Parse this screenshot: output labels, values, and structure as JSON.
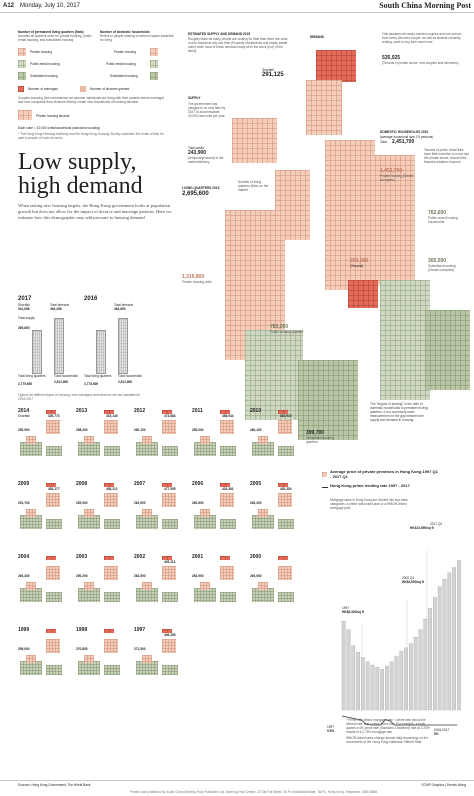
{
  "header": {
    "page": "A12",
    "date": "Monday, July 10, 2017",
    "masthead": "South China Morning Post"
  },
  "legend": {
    "col1_title": "Number of permanent living quarters (flats)",
    "col1_sub": "Includes all quarters used for private housing, public rental housing, and subsidised housing",
    "col2_title": "Number of domestic households",
    "col2_sub": "Refers to people sharing a common space essential for living",
    "private_housing": "Private housing",
    "public_rental": "Public rental housing",
    "subsidised": "Subsidised housing",
    "private_housing2": "Private housing",
    "public_rental2": "Public rental housing",
    "subsidised2": "Subsidised housing",
    "marriages": "Number of marriages",
    "divorces": "Number of divorces granted",
    "note_couples": "Couples marrying (the convenience we assume individuals are living with their parents before marriage) and new occupants from divorces directly create new households of housing demand",
    "private_tenants": "Private housing tenants",
    "cube_note": "Each cube = 10,000 units/households (standard rounding)",
    "source_note": "* The Hong Kong Housing Authority and the Hong Kong Housing Society subsidise the rental of flats for sale to people of lower incomes"
  },
  "headline": {
    "line1": "Low supply,",
    "line2": "high demand",
    "intro": "When setting new housing targets, the Hong Kong government looks at population growth but does not allow for the impact of divorce and marriage patterns. Here we estimate how this demographic may add pressure to housing demand"
  },
  "supply_demand": {
    "title": "ESTIMATED SUPPLY AND DEMAND 2015",
    "text": "Roughly twice as many people are looking for flats than there are units on the market at any one time (Property investments and empty estate units) while most of these demand-ready sit in the stock (not) of the family",
    "shortfall_label": "Shortfall",
    "shortfall": "291,125",
    "supply_title": "SUPPLY",
    "supply_text": "The government has pledged to no new flats by 2027 to accommodate 20,000 new units per year",
    "total_public": "Total public",
    "total_public_value": "243,900",
    "public_note": "(temporary/vacant) in the market/delivery",
    "living_title": "LIVING QUARTERS 2015",
    "living_value": "2,695,600",
    "living_note": "Number of living quarters (flats) on the market",
    "private_units": "1,316,800",
    "private_units_label": "Private housing units",
    "public_units": "783,200",
    "public_units_label": "Public housing quarters",
    "subsidised_units": "399,700",
    "subsidised_units_label": "Subsidised housing quarters",
    "demand_title": "DEMAND",
    "demand_text": "This assumes all newly married couples and one person from every divorced couple, as well as tenants currently renting, want to buy their own home",
    "demand_value": "535,025",
    "demand_note": "(Tenants in private sector, new couples and divorcees)",
    "households_title": "DOMESTIC HOUSEHOLDS 2015",
    "households_sub": "(average household size 2.9 persons)",
    "households_total_label": "Total",
    "households_total": "2,451,700",
    "private_households": "1,451,700",
    "private_households_label": "Private housing (Owner-occupiers)",
    "tenants_note": "Tenants of public rental flats have little incentive to move into the private sector, should their financial situation improve",
    "public_households": "762,600",
    "public_households_label": "Public rental housing households",
    "subsidised_households": "393,000",
    "subsidised_households_label": "(Tenants)",
    "subsidised_owner": "365,500",
    "subsidised_owner_label": "Subsidised housing (Owner-occupiers)",
    "shortage_note": "The \"degree of sharing\" is the ratio of domestic households to permanent living quarters. It is a commonly used measurement for the gap between the supply and demand in housing"
  },
  "years": [
    {
      "year": "2017",
      "shortfall_label": "Shortfall",
      "shortfall": "331,658",
      "demand_label": "Total demand",
      "demand": "494,298",
      "supply_label": "Total supply",
      "supply": "265,890",
      "private_label": "Private housing",
      "households_label": "Total households",
      "households": "2,512,800",
      "quarters_label": "Total living quarters",
      "quarters": "2,775,600"
    },
    {
      "year": "2016",
      "shortfall_label": "Shortfall",
      "shortfall": "",
      "demand_label": "Total demand",
      "demand": "464,800",
      "supply_label": "Total supply",
      "supply": "",
      "private_label": "",
      "households_label": "Total households",
      "households": "2,512,800",
      "quarters_label": "Total living quarters",
      "quarters": "2,775,600"
    }
  ],
  "figure_note": "Figures for different types of housing, new marriages and divorces are not available for 2016-2017",
  "grid_years": [
    {
      "year": "2014",
      "a": "Shortfall",
      "b": "326,773",
      "c": "250,900"
    },
    {
      "year": "2013",
      "a": "",
      "b": "315,145",
      "c": "258,400"
    },
    {
      "year": "2012",
      "a": "",
      "b": "473,884",
      "c": "260,100"
    },
    {
      "year": "2011",
      "a": "",
      "b": "458,944",
      "c": "250,000"
    },
    {
      "year": "2010",
      "a": "",
      "b": "432,915",
      "c": "260,100"
    },
    {
      "year": "2009",
      "a": "",
      "b": "453,177",
      "c": "251,700"
    },
    {
      "year": "2008",
      "a": "",
      "b": "438,212",
      "c": "252,900"
    },
    {
      "year": "2007",
      "a": "",
      "b": "477,555",
      "c": "262,900"
    },
    {
      "year": "2006",
      "a": "",
      "b": "433,361",
      "c": "260,600"
    },
    {
      "year": "2005",
      "a": "",
      "b": "420,253",
      "c": "262,200"
    },
    {
      "year": "2004",
      "a": "",
      "b": "",
      "c": "264,300"
    },
    {
      "year": "2003",
      "a": "",
      "b": "",
      "c": "250,200"
    },
    {
      "year": "2002",
      "a": "",
      "b": "405,113",
      "c": "262,500"
    },
    {
      "year": "2001",
      "a": "",
      "b": "",
      "c": "263,900"
    },
    {
      "year": "2000",
      "a": "",
      "b": "",
      "c": "264,000"
    },
    {
      "year": "1999",
      "a": "",
      "b": "",
      "c": "259,000"
    },
    {
      "year": "1998",
      "a": "",
      "b": "",
      "c": "270,800"
    },
    {
      "year": "1997",
      "a": "",
      "b": "406,285",
      "c": "271,500"
    }
  ],
  "price_chart": {
    "title1": "Average price of private premises in Hong Kong 1997 Q1 - 2017 Q1",
    "title2": "Hong Kong prime lending rate 1997 - 2017",
    "note": "Mortgage rates in Hong Kong are divided into two main categories: a prime rate-linked plan or a HIBOR-linked mortgage plan",
    "peak_label": "2017 Q1",
    "peak_value": "HK$13,950/sq ft",
    "mid_label": "2000 Q1",
    "mid_value": "HK$4,900/sq ft",
    "start_label": "1997",
    "start_value": "HK$8,300/sq ft",
    "rate_start": "9.5%",
    "rate_end": "5%",
    "footnote1": "* Prime rate-linked mortgage rate = prime rate minus the interest rate that a bank offers you. For example, a bank quotes a 4% prime rate (Standard Chartered) rate at 2.25% results in a 2.75% mortgage rate",
    "footnote2": "HIBOR-linked rates change almost daily depending on the movements of the Hong Kong Interbank Offered Rate",
    "year_1997": "1997",
    "year_end": "2016-2017",
    "year_end_value": "5%"
  },
  "footer": {
    "sources": "Sources: Hong Kong Government, The World Bank",
    "credits": "SCMP Graphics | Dennis Wong",
    "printer": "Printed and published by South China Morning Post Publishers Ltd, Morning Post Centre, 22 Dai Fat Street, Tai Po Industrial Estate, Tai Po, Hong Kong. Telephone: 2680 8888"
  }
}
